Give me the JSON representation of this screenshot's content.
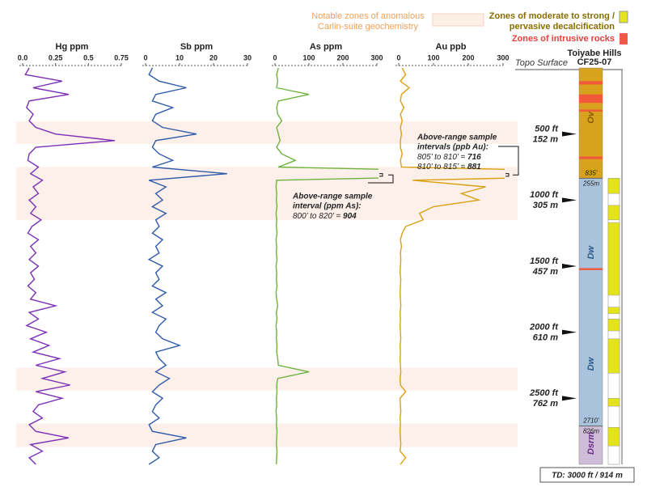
{
  "chart_data": [
    {
      "type": "line",
      "orientation": "vertical",
      "title": "Hg ppm",
      "color": "#7b2fb5",
      "xlim": [
        0,
        0.75
      ],
      "xticks": [
        {
          "value": 0,
          "label": "0.0"
        },
        0.25,
        0.5,
        0.75
      ],
      "ylim": [
        0,
        3000
      ],
      "y": [
        0,
        50,
        100,
        150,
        200,
        250,
        300,
        350,
        400,
        450,
        500,
        550,
        600,
        650,
        700,
        750,
        800,
        850,
        900,
        950,
        1000,
        1050,
        1100,
        1150,
        1200,
        1250,
        1300,
        1350,
        1400,
        1450,
        1500,
        1550,
        1600,
        1650,
        1700,
        1750,
        1800,
        1850,
        1900,
        1950,
        2000,
        2050,
        2100,
        2150,
        2200,
        2250,
        2300,
        2350,
        2400,
        2450,
        2500,
        2550,
        2600,
        2650,
        2700,
        2750,
        2800,
        2850,
        2900,
        2950,
        3000
      ],
      "values": [
        0.05,
        0.02,
        0.3,
        0.08,
        0.35,
        0.05,
        0.03,
        0.08,
        0.05,
        0.1,
        0.25,
        0.7,
        0.1,
        0.05,
        0.04,
        0.12,
        0.06,
        0.15,
        0.08,
        0.12,
        0.05,
        0.1,
        0.06,
        0.14,
        0.07,
        0.04,
        0.12,
        0.06,
        0.1,
        0.05,
        0.12,
        0.06,
        0.09,
        0.04,
        0.1,
        0.06,
        0.25,
        0.05,
        0.12,
        0.03,
        0.18,
        0.06,
        0.2,
        0.08,
        0.28,
        0.1,
        0.32,
        0.15,
        0.36,
        0.1,
        0.3,
        0.12,
        0.08,
        0.15,
        0.05,
        0.1,
        0.35,
        0.06,
        0.15,
        0.05,
        0.1
      ]
    },
    {
      "type": "line",
      "orientation": "vertical",
      "title": "Sb ppm",
      "color": "#2f5aa8",
      "xlim": [
        0,
        30
      ],
      "xticks": [
        0,
        10,
        20,
        30
      ],
      "ylim": [
        0,
        3000
      ],
      "y": [
        0,
        50,
        100,
        150,
        200,
        250,
        300,
        350,
        400,
        450,
        500,
        550,
        600,
        650,
        700,
        750,
        800,
        850,
        900,
        950,
        1000,
        1050,
        1100,
        1150,
        1200,
        1250,
        1300,
        1350,
        1400,
        1450,
        1500,
        1550,
        1600,
        1650,
        1700,
        1750,
        1800,
        1850,
        1900,
        1950,
        2000,
        2050,
        2100,
        2150,
        2200,
        2250,
        2300,
        2350,
        2400,
        2450,
        2500,
        2550,
        2600,
        2650,
        2700,
        2750,
        2800,
        2850,
        2900,
        2950,
        3000
      ],
      "values": [
        2,
        1,
        4,
        12,
        3,
        2,
        8,
        3,
        2,
        5,
        15,
        3,
        2,
        4,
        8,
        2,
        24,
        1,
        6,
        3,
        5,
        2,
        6,
        3,
        4,
        2,
        5,
        3,
        4,
        1,
        5,
        3,
        4,
        2,
        6,
        3,
        5,
        2,
        6,
        4,
        3,
        5,
        10,
        3,
        4,
        6,
        3,
        7,
        4,
        2,
        5,
        3,
        2,
        4,
        1,
        2,
        12,
        3,
        2,
        4,
        1
      ]
    },
    {
      "type": "line",
      "orientation": "vertical",
      "title": "As ppm",
      "color": "#6db33f",
      "xlim": [
        0,
        300
      ],
      "xticks": [
        0,
        100,
        200,
        300
      ],
      "ylim": [
        0,
        3000
      ],
      "y": [
        0,
        50,
        100,
        150,
        200,
        250,
        300,
        350,
        400,
        450,
        500,
        550,
        600,
        650,
        700,
        750,
        800,
        850,
        900,
        950,
        1000,
        1050,
        1100,
        1150,
        1200,
        1250,
        1300,
        1350,
        1400,
        1450,
        1500,
        1550,
        1600,
        1650,
        1700,
        1750,
        1800,
        1850,
        1900,
        1950,
        2000,
        2050,
        2100,
        2150,
        2200,
        2250,
        2300,
        2350,
        2400,
        2450,
        2500,
        2550,
        2600,
        2650,
        2700,
        2750,
        2800,
        2850,
        2900,
        2950,
        3000
      ],
      "values": [
        10,
        5,
        8,
        5,
        100,
        10,
        5,
        8,
        20,
        5,
        10,
        15,
        5,
        20,
        60,
        10,
        904,
        5,
        3,
        5,
        4,
        6,
        3,
        5,
        4,
        6,
        3,
        5,
        4,
        6,
        3,
        5,
        4,
        6,
        3,
        5,
        8,
        4,
        6,
        3,
        5,
        4,
        6,
        5,
        8,
        10,
        100,
        8,
        5,
        6,
        4,
        5,
        3,
        5,
        4,
        6,
        5,
        4,
        6,
        5,
        4
      ]
    },
    {
      "type": "line",
      "orientation": "vertical",
      "title": "Au ppb",
      "color": "#d9a011",
      "xlim": [
        0,
        300
      ],
      "xticks": [
        0,
        100,
        200,
        300
      ],
      "ylim": [
        0,
        3000
      ],
      "y": [
        0,
        50,
        100,
        150,
        200,
        250,
        300,
        350,
        400,
        450,
        500,
        550,
        600,
        650,
        700,
        750,
        800,
        850,
        900,
        950,
        1000,
        1050,
        1100,
        1150,
        1200,
        1250,
        1300,
        1350,
        1400,
        1450,
        1500,
        1550,
        1600,
        1650,
        1700,
        1750,
        1800,
        1850,
        1900,
        1950,
        2000,
        2050,
        2100,
        2150,
        2200,
        2250,
        2300,
        2350,
        2400,
        2450,
        2500,
        2550,
        2600,
        2650,
        2700,
        2750,
        2800,
        2850,
        2900,
        2950,
        3000
      ],
      "values": [
        10,
        20,
        5,
        30,
        8,
        5,
        15,
        5,
        10,
        5,
        8,
        5,
        5,
        10,
        5,
        8,
        881,
        40,
        250,
        180,
        230,
        100,
        60,
        70,
        20,
        10,
        5,
        8,
        5,
        6,
        5,
        4,
        6,
        5,
        4,
        5,
        6,
        4,
        5,
        4,
        5,
        6,
        4,
        5,
        4,
        5,
        6,
        4,
        5,
        20,
        4,
        5,
        6,
        4,
        5,
        4,
        5,
        6,
        4,
        20,
        5
      ]
    }
  ],
  "legend": {
    "geochem": [
      "Notable zones of anomalous",
      "Carlin-suite geochemistry"
    ],
    "decalc": [
      "Zones of moderate to strong /",
      "pervasive decalcification"
    ],
    "intrusive": "Zones of intrusive rocks"
  },
  "zones": [
    [
      405,
      575
    ],
    [
      750,
      1150
    ],
    [
      2270,
      2440
    ],
    [
      2690,
      2870
    ]
  ],
  "well": {
    "title": [
      "Toiyabe Hills",
      "CF25-07"
    ],
    "topo": "Topo Surface",
    "td": "TD: 3000 ft / 914 m",
    "units": [
      {
        "name": "Ov",
        "top": 0,
        "base": 835
      },
      {
        "name": "Dw",
        "top": 835,
        "base": 2710
      },
      {
        "name": "Dsrm",
        "top": 2710,
        "base": 3000
      }
    ],
    "boundaries": [
      {
        "value": 835,
        "ft": "835’",
        "m": "255m"
      },
      {
        "value": 2710,
        "ft": "2710’",
        "m": "826m"
      }
    ],
    "depth_markers": [
      {
        "value": 500,
        "label": "500 ft",
        "m": "152 m"
      },
      {
        "value": 1000,
        "label": "1000 ft",
        "m": "305 m"
      },
      {
        "value": 1500,
        "label": "1500 ft",
        "m": "457 m"
      },
      {
        "value": 2000,
        "label": "2000 ft",
        "m": "610 m"
      },
      {
        "value": 2500,
        "label": "2500 ft",
        "m": "762 m"
      }
    ],
    "intrusive": [
      [
        100,
        125
      ],
      [
        200,
        265
      ],
      [
        315,
        330
      ],
      [
        670,
        690
      ],
      [
        1515,
        1530
      ]
    ],
    "decalcification": [
      [
        835,
        950
      ],
      [
        1040,
        1150
      ],
      [
        1170,
        1720
      ],
      [
        1810,
        1860
      ],
      [
        1900,
        1990
      ],
      [
        2050,
        2310
      ],
      [
        2500,
        2560
      ],
      [
        2720,
        2860
      ]
    ]
  },
  "annotations": {
    "as": {
      "lines": [
        "Above-range sample",
        "interval (ppm As):"
      ],
      "rows": [
        {
          "label": "800’ to 820’ = ",
          "value": 904
        }
      ]
    },
    "au": {
      "lines": [
        "Above-range sample",
        "intervals (ppb Au):"
      ],
      "rows": [
        {
          "label": "805’ to 810’ = ",
          "value": 716
        },
        {
          "label": "810’ to 815’ = ",
          "value": 881
        }
      ]
    }
  }
}
